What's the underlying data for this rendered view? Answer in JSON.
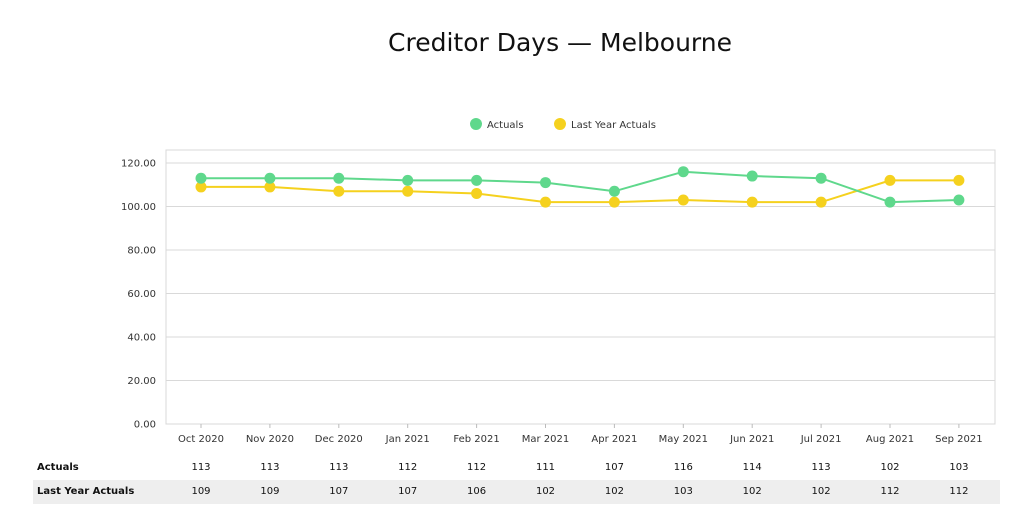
{
  "chart_data": {
    "type": "line",
    "title": "Creditor Days — Melbourne",
    "categories": [
      "Oct 2020",
      "Nov 2020",
      "Dec 2020",
      "Jan 2021",
      "Feb 2021",
      "Mar 2021",
      "Apr 2021",
      "May 2021",
      "Jun 2021",
      "Jul 2021",
      "Aug 2021",
      "Sep 2021"
    ],
    "series": [
      {
        "name": "Actuals",
        "color": "#5fd88c",
        "values": [
          113,
          113,
          113,
          112,
          112,
          111,
          107,
          116,
          114,
          113,
          102,
          103
        ]
      },
      {
        "name": "Last Year Actuals",
        "color": "#f5d11e",
        "values": [
          109,
          109,
          107,
          107,
          106,
          102,
          102,
          103,
          102,
          102,
          112,
          112
        ]
      }
    ],
    "yticks": [
      "0.00",
      "20.00",
      "40.00",
      "60.00",
      "80.00",
      "100.00",
      "120.00"
    ],
    "ylim": [
      0,
      120
    ],
    "grid": true,
    "legend_position": "top-center",
    "xlabel": "",
    "ylabel": ""
  },
  "data_table": {
    "rows": [
      {
        "label": "Actuals",
        "values": [
          "113",
          "113",
          "113",
          "112",
          "112",
          "111",
          "107",
          "116",
          "114",
          "113",
          "102",
          "103"
        ]
      },
      {
        "label": "Last Year Actuals",
        "values": [
          "109",
          "109",
          "107",
          "107",
          "106",
          "102",
          "102",
          "103",
          "102",
          "102",
          "112",
          "112"
        ]
      }
    ]
  }
}
